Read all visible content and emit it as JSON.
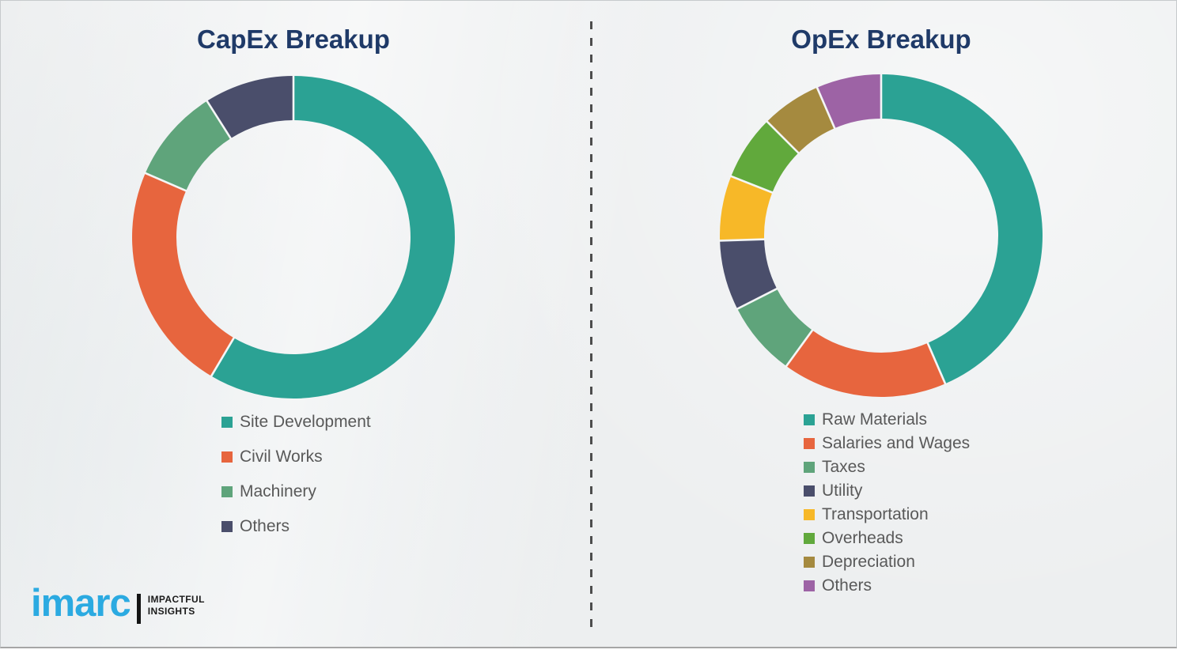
{
  "page": {
    "background_color": "#edeff0",
    "border_color": "#a6a6a6",
    "divider_color": "#4d4d4d",
    "title_color": "#1f3a68",
    "legend_text_color": "#595959"
  },
  "logo": {
    "brand": "imarc",
    "tagline_line1": "IMPACTFUL",
    "tagline_line2": "INSIGHTS",
    "brand_color": "#2baae1"
  },
  "chart_data": [
    {
      "type": "pie",
      "subtype": "donut",
      "title": "CapEx Breakup",
      "categories": [
        "Site Development",
        "Civil Works",
        "Machinery",
        "Others"
      ],
      "values": [
        58.5,
        23,
        9.5,
        9
      ],
      "colors": [
        "#2ba294",
        "#e7653e",
        "#5fa47b",
        "#4a4e6b"
      ],
      "legend_position": "bottom-left",
      "start_angle_deg": 0,
      "direction": "clockwise"
    },
    {
      "type": "pie",
      "subtype": "donut",
      "title": "OpEx Breakup",
      "categories": [
        "Raw Materials",
        "Salaries and Wages",
        "Taxes",
        "Utility",
        "Transportation",
        "Overheads",
        "Depreciation",
        "Others"
      ],
      "values": [
        43.5,
        16.5,
        7.5,
        7,
        6.5,
        6.5,
        6,
        6.5
      ],
      "colors": [
        "#2ba294",
        "#e7653e",
        "#5fa47b",
        "#4a4e6b",
        "#f7b828",
        "#61a93c",
        "#a58a3f",
        "#9d63a5"
      ],
      "legend_position": "bottom-left",
      "start_angle_deg": 0,
      "direction": "clockwise"
    }
  ]
}
